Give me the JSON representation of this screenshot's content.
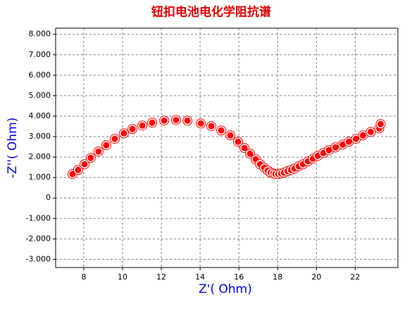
{
  "chart_data": {
    "type": "scatter",
    "title": "钮扣电池电化学阻抗谱",
    "x_label": "Z'( Ohm)",
    "y_label": "-Z''( Ohm)",
    "xlim": [
      6.55,
      24.2
    ],
    "ylim": [
      -3.4,
      8.3
    ],
    "xticks": [
      8,
      10,
      12,
      14,
      16,
      18,
      20,
      22
    ],
    "yticks": [
      {
        "value": -3,
        "label": "-3.000"
      },
      {
        "value": -2,
        "label": "-2.000"
      },
      {
        "value": -1,
        "label": "-1.000"
      },
      0,
      {
        "value": 1,
        "label": "1.000"
      },
      {
        "value": 2,
        "label": "2.000"
      },
      {
        "value": 3,
        "label": "3.000"
      },
      {
        "value": 4,
        "label": "4.000"
      },
      {
        "value": 5,
        "label": "5.000"
      },
      {
        "value": 6,
        "label": "6.000"
      },
      {
        "value": 7,
        "label": "7.000"
      },
      {
        "value": 8,
        "label": "8.000"
      }
    ],
    "grid": true,
    "series": [
      {
        "color": "#ff0000",
        "x": [
          7.42,
          7.71,
          8.04,
          8.36,
          8.76,
          9.16,
          9.6,
          10.07,
          10.51,
          11.02,
          11.53,
          12.15,
          12.76,
          13.35,
          14.04,
          14.58,
          15.09,
          15.56,
          15.96,
          16.29,
          16.58,
          16.87,
          17.09,
          17.31,
          17.49,
          17.64,
          17.78,
          17.89,
          18.04,
          18.18,
          18.33,
          18.51,
          18.69,
          18.87,
          19.09,
          19.31,
          19.56,
          19.82,
          20.07,
          20.36,
          20.65,
          20.98,
          21.35,
          21.67,
          22.04,
          22.4,
          22.8,
          23.24,
          23.31
        ],
        "values": [
          1.17,
          1.37,
          1.65,
          1.96,
          2.27,
          2.58,
          2.89,
          3.16,
          3.37,
          3.54,
          3.68,
          3.78,
          3.81,
          3.78,
          3.64,
          3.51,
          3.3,
          3.06,
          2.75,
          2.44,
          2.16,
          1.89,
          1.65,
          1.48,
          1.34,
          1.24,
          1.2,
          1.17,
          1.17,
          1.2,
          1.24,
          1.31,
          1.37,
          1.44,
          1.55,
          1.65,
          1.79,
          1.92,
          2.06,
          2.2,
          2.34,
          2.47,
          2.61,
          2.75,
          2.89,
          3.06,
          3.23,
          3.4,
          3.61
        ]
      }
    ]
  }
}
